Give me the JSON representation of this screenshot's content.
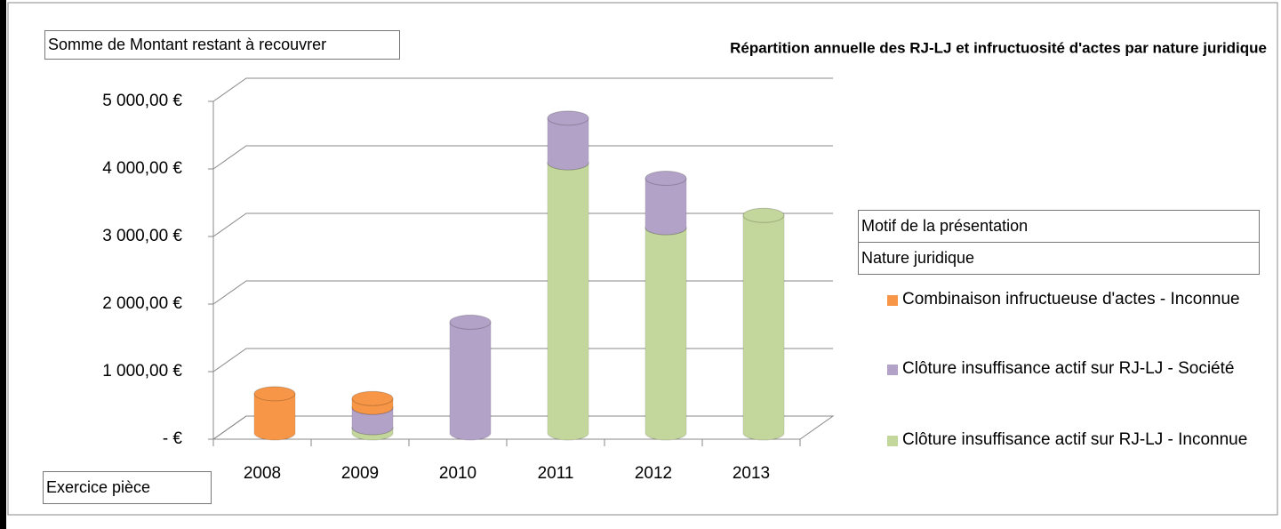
{
  "chart_data": {
    "type": "cylinder3d_stacked",
    "title": "Répartition annuelle des RJ-LJ et infructuosité d'actes par nature juridique",
    "ylabel": "Somme de Montant restant à recouvrer",
    "xlabel": "Exercice pièce",
    "legend_title": [
      "Motif de la présentation",
      "Nature juridique"
    ],
    "categories": [
      "2008",
      "2009",
      "2010",
      "2011",
      "2012",
      "2013"
    ],
    "series": [
      {
        "name": "Clôture insuffisance actif sur RJ-LJ - Inconnue",
        "color": "#c3d69b",
        "values": [
          null,
          80,
          null,
          4000,
          3040,
          3220
        ]
      },
      {
        "name": "Clôture insuffisance actif sur RJ-LJ - Société",
        "color": "#b3a2c7",
        "values": [
          null,
          300,
          1640,
          660,
          730,
          null
        ]
      },
      {
        "name": "Combinaison infructueuse d'actes - Inconnue",
        "color": "#f79646",
        "values": [
          580,
          130,
          null,
          null,
          null,
          null
        ]
      }
    ],
    "legend_order": [
      2,
      1,
      0
    ],
    "ylim": [
      0,
      5000
    ],
    "yticks": [
      {
        "value": 0,
        "label": "-   €"
      },
      {
        "value": 1000,
        "label": "1 000,00 €"
      },
      {
        "value": 2000,
        "label": "2 000,00 €"
      },
      {
        "value": 3000,
        "label": "3 000,00 €"
      },
      {
        "value": 4000,
        "label": "4 000,00 €"
      },
      {
        "value": 5000,
        "label": "5 000,00 €"
      }
    ],
    "grid": true,
    "legend": "right"
  }
}
